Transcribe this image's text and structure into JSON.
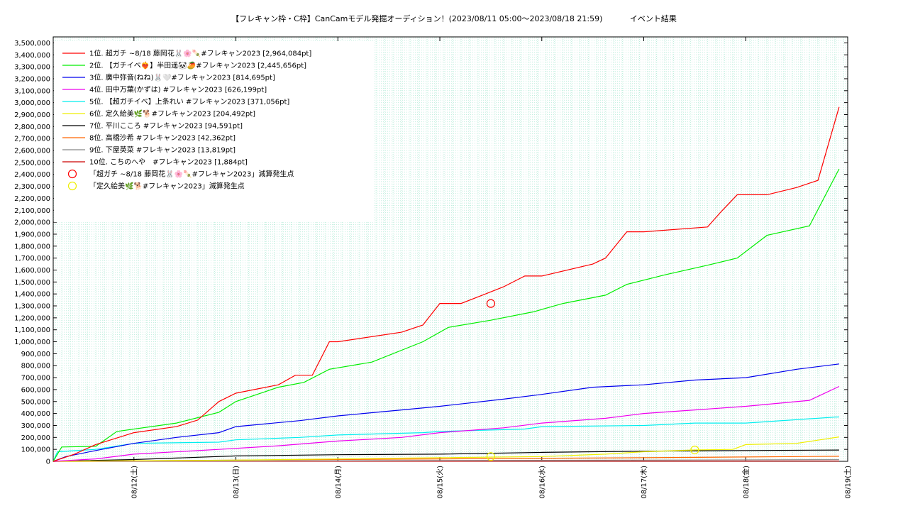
{
  "chart_data": {
    "type": "line",
    "title": "【フレキャン枠・C枠】CanCamモデル発掘オーディション！(2023/08/11 05:00〜2023/08/18 21:59)           イベント結果",
    "xlabel": "",
    "ylabel": "",
    "ylim": [
      0,
      3550000
    ],
    "y_ticks": [
      "0",
      "100,000",
      "200,000",
      "300,000",
      "400,000",
      "500,000",
      "600,000",
      "700,000",
      "800,000",
      "900,000",
      "1,000,000",
      "1,100,000",
      "1,200,000",
      "1,300,000",
      "1,400,000",
      "1,500,000",
      "1,600,000",
      "1,700,000",
      "1,800,000",
      "1,900,000",
      "2,000,000",
      "2,100,000",
      "2,200,000",
      "2,300,000",
      "2,400,000",
      "2,500,000",
      "2,600,000",
      "2,700,000",
      "2,800,000",
      "2,900,000",
      "3,000,000",
      "3,100,000",
      "3,200,000",
      "3,300,000",
      "3,400,000",
      "3,500,000"
    ],
    "xlim": [
      "2023-08-11 05:00",
      "2023-08-19 00:00"
    ],
    "x_ticks": [
      "08/12(土)",
      "08/13(日)",
      "08/14(月)",
      "08/15(火)",
      "08/16(水)",
      "08/17(木)",
      "08/18(金)",
      "08/19(土)"
    ],
    "grid": true,
    "legend_position": "top-left",
    "series": [
      {
        "name": "1位. 超ガチ ~8/18 藤岡花🐰🌸🍡#フレキャン2023 [2,964,084pt]",
        "color": "#ff0000",
        "x": [
          "2023-08-11 05:00",
          "2023-08-11 10:00",
          "2023-08-11 15:00",
          "2023-08-12 00:00",
          "2023-08-12 10:00",
          "2023-08-12 15:00",
          "2023-08-12 20:00",
          "2023-08-13 00:00",
          "2023-08-13 10:00",
          "2023-08-13 14:00",
          "2023-08-13 18:00",
          "2023-08-13 22:00",
          "2023-08-14 00:00",
          "2023-08-14 15:00",
          "2023-08-14 20:00",
          "2023-08-15 00:00",
          "2023-08-15 05:00",
          "2023-08-15 10:00",
          "2023-08-15 15:00",
          "2023-08-15 20:00",
          "2023-08-16 00:00",
          "2023-08-16 12:00",
          "2023-08-16 15:00",
          "2023-08-16 20:00",
          "2023-08-17 00:00",
          "2023-08-17 15:00",
          "2023-08-17 18:00",
          "2023-08-17 22:00",
          "2023-08-18 05:00",
          "2023-08-18 12:00",
          "2023-08-18 17:00",
          "2023-08-18 21:59"
        ],
        "values": [
          0,
          60000,
          140000,
          240000,
          290000,
          345000,
          500000,
          570000,
          640000,
          720000,
          720000,
          1000000,
          1000000,
          1080000,
          1140000,
          1320000,
          1320000,
          1390000,
          1460000,
          1550000,
          1550000,
          1650000,
          1700000,
          1920000,
          1920000,
          1960000,
          2080000,
          2230000,
          2230000,
          2290000,
          2350000,
          2964084
        ]
      },
      {
        "name": "2位. 【ガチイベ❤️‍🔥】半田遥🐼🥭#フレキャン2023 [2,445,656pt]",
        "color": "#00ee00",
        "x": [
          "2023-08-11 05:00",
          "2023-08-11 07:00",
          "2023-08-11 15:00",
          "2023-08-11 20:00",
          "2023-08-12 10:00",
          "2023-08-12 20:00",
          "2023-08-13 00:00",
          "2023-08-13 10:00",
          "2023-08-13 16:00",
          "2023-08-13 22:00",
          "2023-08-14 08:00",
          "2023-08-14 20:00",
          "2023-08-15 02:00",
          "2023-08-15 12:00",
          "2023-08-15 22:00",
          "2023-08-16 05:00",
          "2023-08-16 15:00",
          "2023-08-16 20:00",
          "2023-08-17 05:00",
          "2023-08-17 15:00",
          "2023-08-17 22:00",
          "2023-08-18 05:00",
          "2023-08-18 15:00",
          "2023-08-18 21:59"
        ],
        "values": [
          0,
          120000,
          125000,
          250000,
          320000,
          410000,
          500000,
          620000,
          660000,
          770000,
          830000,
          1000000,
          1120000,
          1180000,
          1250000,
          1320000,
          1390000,
          1480000,
          1560000,
          1640000,
          1700000,
          1890000,
          1970000,
          2445656
        ]
      },
      {
        "name": "3位. 廣中弥音(ねね)🐰🤍#フレキャン2023 [814,695pt]",
        "color": "#0000ee",
        "x": [
          "2023-08-11 05:00",
          "2023-08-11 08:00",
          "2023-08-11 15:00",
          "2023-08-12 00:00",
          "2023-08-12 10:00",
          "2023-08-12 20:00",
          "2023-08-13 00:00",
          "2023-08-13 15:00",
          "2023-08-14 00:00",
          "2023-08-14 15:00",
          "2023-08-15 00:00",
          "2023-08-15 15:00",
          "2023-08-16 00:00",
          "2023-08-16 12:00",
          "2023-08-17 00:00",
          "2023-08-17 12:00",
          "2023-08-18 00:00",
          "2023-08-18 12:00",
          "2023-08-18 21:59"
        ],
        "values": [
          0,
          40000,
          90000,
          150000,
          200000,
          240000,
          290000,
          340000,
          380000,
          430000,
          460000,
          520000,
          560000,
          620000,
          640000,
          680000,
          700000,
          770000,
          814695
        ]
      },
      {
        "name": "4位. 田中万葉(かずは) #フレキャン2023 [626,199pt]",
        "color": "#ee00ee",
        "x": [
          "2023-08-11 05:00",
          "2023-08-11 15:00",
          "2023-08-12 00:00",
          "2023-08-12 20:00",
          "2023-08-13 10:00",
          "2023-08-14 00:00",
          "2023-08-14 15:00",
          "2023-08-15 00:00",
          "2023-08-15 15:00",
          "2023-08-16 00:00",
          "2023-08-16 15:00",
          "2023-08-17 00:00",
          "2023-08-17 12:00",
          "2023-08-18 00:00",
          "2023-08-18 15:00",
          "2023-08-18 21:59"
        ],
        "values": [
          0,
          20000,
          60000,
          100000,
          130000,
          170000,
          200000,
          240000,
          280000,
          320000,
          360000,
          400000,
          430000,
          460000,
          510000,
          626199
        ]
      },
      {
        "name": "5位. 【超ガチイベ】上条れい #フレキャン2023 [371,056pt]",
        "color": "#00eeee",
        "x": [
          "2023-08-11 05:00",
          "2023-08-11 06:00",
          "2023-08-11 15:00",
          "2023-08-12 00:00",
          "2023-08-12 20:00",
          "2023-08-13 00:00",
          "2023-08-13 15:00",
          "2023-08-14 00:00",
          "2023-08-14 20:00",
          "2023-08-15 00:00",
          "2023-08-15 20:00",
          "2023-08-16 00:00",
          "2023-08-17 00:00",
          "2023-08-17 12:00",
          "2023-08-18 00:00",
          "2023-08-18 21:00",
          "2023-08-18 21:59"
        ],
        "values": [
          0,
          80000,
          100000,
          150000,
          160000,
          180000,
          200000,
          220000,
          240000,
          250000,
          270000,
          290000,
          300000,
          320000,
          320000,
          370000,
          371056
        ]
      },
      {
        "name": "6位. 定久絵美🌿🐕#フレキャン2023 [204,492pt]",
        "color": "#eeee00",
        "x": [
          "2023-08-11 05:00",
          "2023-08-12 00:00",
          "2023-08-13 00:00",
          "2023-08-14 00:00",
          "2023-08-15 00:00",
          "2023-08-16 00:00",
          "2023-08-16 15:00",
          "2023-08-17 00:00",
          "2023-08-17 12:00",
          "2023-08-17 21:00",
          "2023-08-18 00:00",
          "2023-08-18 12:00",
          "2023-08-18 21:59"
        ],
        "values": [
          0,
          5000,
          10000,
          20000,
          30000,
          40000,
          60000,
          80000,
          95000,
          100000,
          140000,
          150000,
          204492
        ]
      },
      {
        "name": "7位. 平川こころ #フレキャン2023 [94,591pt]",
        "color": "#000000",
        "x": [
          "2023-08-11 05:00",
          "2023-08-12 00:00",
          "2023-08-13 00:00",
          "2023-08-14 00:00",
          "2023-08-15 00:00",
          "2023-08-16 00:00",
          "2023-08-17 00:00",
          "2023-08-18 00:00",
          "2023-08-18 21:59"
        ],
        "values": [
          0,
          15000,
          45000,
          55000,
          60000,
          75000,
          85000,
          90000,
          94591
        ]
      },
      {
        "name": "8位. 高橋沙希 #フレキャン2023 [42,362pt]",
        "color": "#ff6600",
        "x": [
          "2023-08-11 05:00",
          "2023-08-13 00:00",
          "2023-08-15 00:00",
          "2023-08-17 00:00",
          "2023-08-18 21:59"
        ],
        "values": [
          0,
          10000,
          20000,
          30000,
          42362
        ]
      },
      {
        "name": "9位. 下屋英菜 #フレキャン2023 [13,819pt]",
        "color": "#888888",
        "x": [
          "2023-08-11 05:00",
          "2023-08-14 00:00",
          "2023-08-17 00:00",
          "2023-08-18 21:59"
        ],
        "values": [
          0,
          5000,
          10000,
          13819
        ]
      },
      {
        "name": "10位. こちのへや　#フレキャン2023 [1,884pt]",
        "color": "#cc0000",
        "x": [
          "2023-08-11 05:00",
          "2023-08-18 21:59"
        ],
        "values": [
          0,
          1884
        ]
      }
    ],
    "markers": [
      {
        "name": "「超ガチ ~8/18 藤岡花🐰🌸🍡#フレキャン2023」減算発生点",
        "color": "#ff0000",
        "x": [
          "2023-08-15 12:00"
        ],
        "values": [
          1320000
        ]
      },
      {
        "name": "「定久絵美🌿🐕#フレキャン2023」減算発生点",
        "color": "#eeee00",
        "x": [
          "2023-08-15 12:00",
          "2023-08-17 12:00"
        ],
        "values": [
          40000,
          95000
        ]
      }
    ]
  }
}
